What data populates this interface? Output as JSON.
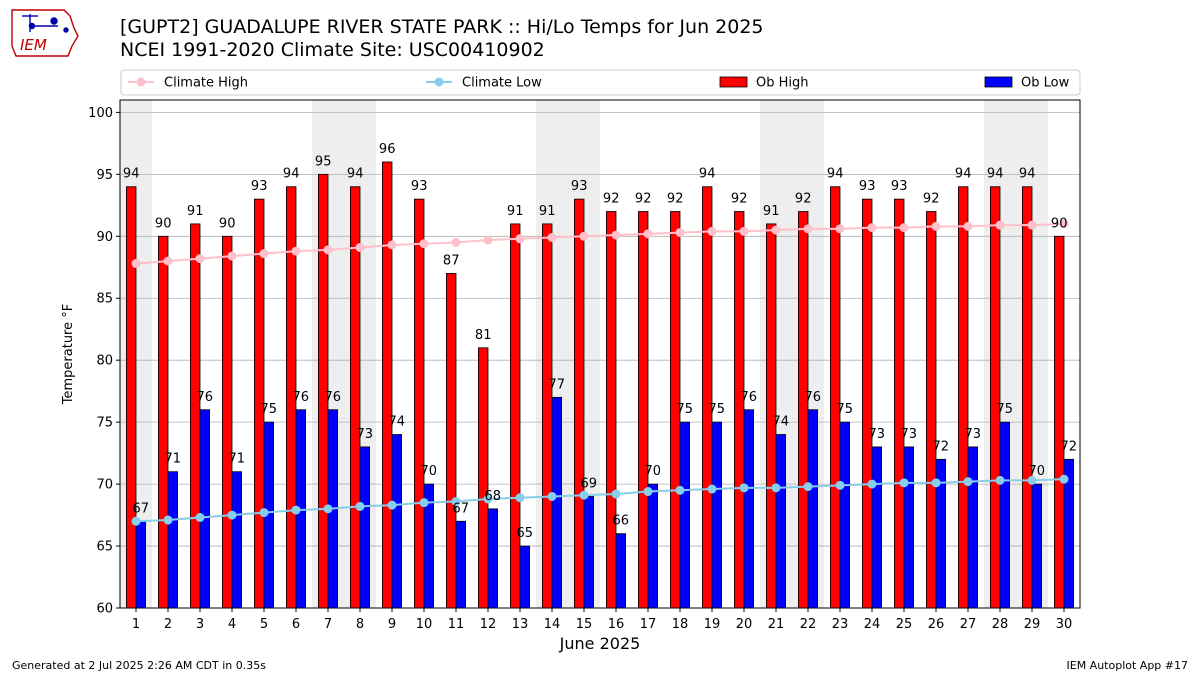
{
  "header": {
    "title_line1": "[GUPT2] GUADALUPE RIVER STATE PARK :: Hi/Lo Temps for Jun 2025",
    "title_line2": "NCEI 1991-2020 Climate Site: USC00410902",
    "logo_text": "IEM"
  },
  "footer": {
    "generated": "Generated at 2 Jul 2025 2:26 AM CDT in 0.35s",
    "app": "IEM Autoplot App #17"
  },
  "colors": {
    "ob_high": "#ff0000",
    "ob_low": "#0000ff",
    "climate_high": "#ffc0cb",
    "climate_low": "#87ceeb",
    "weekend_shade": "#eeeeee"
  },
  "chart_data": {
    "type": "bar",
    "xlabel": "June 2025",
    "ylabel": "Temperature °F",
    "ylim": [
      60,
      101
    ],
    "yticks": [
      60,
      65,
      70,
      75,
      80,
      85,
      90,
      95,
      100
    ],
    "grid": true,
    "legend_position": "top",
    "categories": [
      "1",
      "2",
      "3",
      "4",
      "5",
      "6",
      "7",
      "8",
      "9",
      "10",
      "11",
      "12",
      "13",
      "14",
      "15",
      "16",
      "17",
      "18",
      "19",
      "20",
      "21",
      "22",
      "23",
      "24",
      "25",
      "26",
      "27",
      "28",
      "29",
      "30"
    ],
    "shaded_days": [
      1,
      7,
      8,
      14,
      15,
      21,
      22,
      28,
      29
    ],
    "series": [
      {
        "name": "Ob High",
        "kind": "bar",
        "values": [
          94,
          90,
          91,
          90,
          93,
          94,
          95,
          94,
          96,
          93,
          87,
          81,
          91,
          91,
          93,
          92,
          92,
          92,
          94,
          92,
          91,
          92,
          94,
          93,
          93,
          92,
          94,
          94,
          94,
          90
        ]
      },
      {
        "name": "Ob Low",
        "kind": "bar",
        "values": [
          67,
          71,
          76,
          71,
          75,
          76,
          76,
          73,
          74,
          70,
          67,
          68,
          65,
          77,
          69,
          66,
          70,
          75,
          75,
          76,
          74,
          76,
          75,
          73,
          73,
          72,
          73,
          75,
          70,
          72
        ]
      },
      {
        "name": "Climate High",
        "kind": "line",
        "values": [
          87.8,
          88.0,
          88.2,
          88.4,
          88.6,
          88.8,
          88.9,
          89.1,
          89.3,
          89.4,
          89.5,
          89.7,
          89.8,
          89.9,
          90.0,
          90.1,
          90.2,
          90.3,
          90.4,
          90.4,
          90.5,
          90.6,
          90.6,
          90.7,
          90.7,
          90.8,
          90.8,
          90.9,
          90.9,
          91.0
        ]
      },
      {
        "name": "Climate Low",
        "kind": "line",
        "values": [
          67.0,
          67.1,
          67.3,
          67.5,
          67.7,
          67.9,
          68.0,
          68.2,
          68.3,
          68.5,
          68.6,
          68.8,
          68.9,
          69.0,
          69.1,
          69.2,
          69.4,
          69.5,
          69.6,
          69.7,
          69.7,
          69.8,
          69.9,
          70.0,
          70.1,
          70.1,
          70.2,
          70.3,
          70.3,
          70.4
        ]
      }
    ]
  }
}
